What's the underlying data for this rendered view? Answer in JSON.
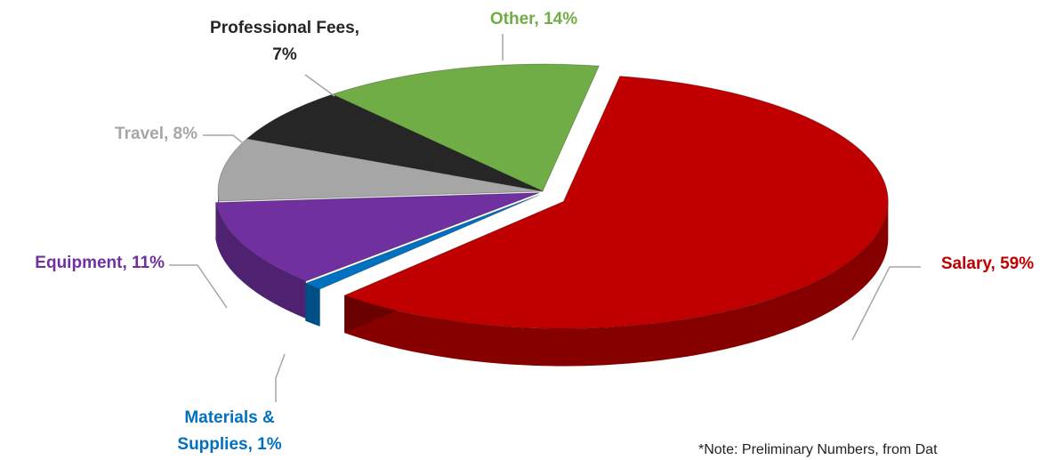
{
  "chart_data": {
    "type": "pie",
    "values": [
      59,
      1,
      11,
      8,
      7,
      14
    ],
    "value_labels": [
      "Salary, 59%",
      "Materials & Supplies, 1%",
      "Equipment, 11%",
      "Travel, 8%",
      "Professional Fees, 7%",
      "Other, 14%"
    ],
    "colors": [
      "#c00000",
      "#0070c0",
      "#7030a0",
      "#a6a6a6",
      "#262626",
      "#70ad47"
    ],
    "note": "*Note: Preliminary Numbers, from Dat"
  }
}
